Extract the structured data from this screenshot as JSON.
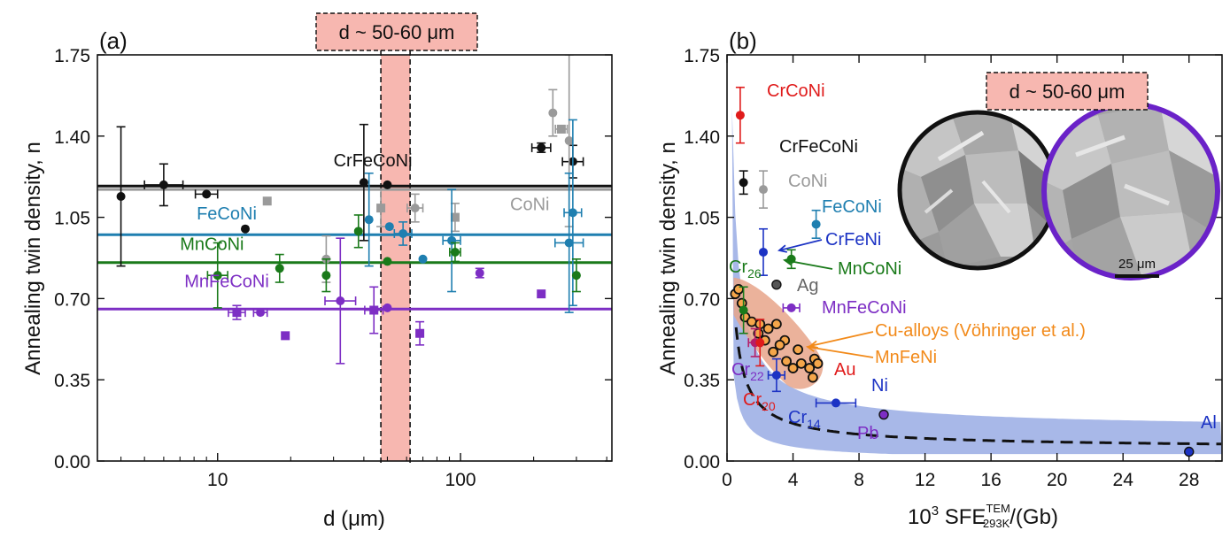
{
  "chart_data": [
    {
      "panel_label": "(a)",
      "type": "scatter",
      "x_scale": "log",
      "xlim": [
        3.2,
        420
      ],
      "ylim": [
        0,
        1.75
      ],
      "xlabel": "d (μm)",
      "ylabel": "Annealing twin density, n",
      "xticks": [
        {
          "value": 10,
          "label": "10"
        },
        {
          "value": 100,
          "label": "100"
        }
      ],
      "yticks": [
        {
          "value": 0,
          "label": "0.00"
        },
        {
          "value": 0.35,
          "label": "0.35"
        },
        {
          "value": 0.7,
          "label": "0.70"
        },
        {
          "value": 1.05,
          "label": "1.05"
        },
        {
          "value": 1.4,
          "label": "1.40"
        },
        {
          "value": 1.75,
          "label": "1.75"
        }
      ],
      "band": {
        "x_range": [
          47,
          62
        ],
        "color": "#f7b7b0",
        "label": "d ~ 50-60 μm"
      },
      "series": [
        {
          "name": "CrFeCoNi",
          "color": "#111111",
          "fit_y": 1.185,
          "label_x": 30,
          "label_y": 1.27,
          "points": [
            {
              "x": 4,
              "y": 1.14,
              "yerr": 0.3
            },
            {
              "x": 6,
              "y": 1.19,
              "yerr": 0.09,
              "xerr": 1.2
            },
            {
              "x": 9,
              "y": 1.15,
              "xerr": 1
            },
            {
              "x": 13,
              "y": 1.0
            },
            {
              "x": 40,
              "y": 1.2,
              "yerr": 0.25
            },
            {
              "x": 50,
              "y": 1.19
            },
            {
              "x": 215,
              "y": 1.35,
              "yerr": 0.02,
              "xerr": 20
            },
            {
              "x": 290,
              "y": 1.29,
              "yerr": 0.07,
              "xerr": 30
            }
          ]
        },
        {
          "name": "CoNi",
          "color": "#9a9a9a",
          "fit_y": 1.17,
          "label_x": 160,
          "label_y": 1.08,
          "points": [
            {
              "x": 16,
              "y": 1.12
            },
            {
              "x": 28,
              "y": 0.87,
              "yerr": 0.1
            },
            {
              "x": 47,
              "y": 1.09,
              "yerr": 0.08
            },
            {
              "x": 65,
              "y": 1.09,
              "yerr": 0.06,
              "xerr": 5
            },
            {
              "x": 95,
              "y": 1.05,
              "yerr": 0.06
            },
            {
              "x": 240,
              "y": 1.5,
              "yerr": 0.1
            },
            {
              "x": 260,
              "y": 1.43,
              "xerr": 15
            },
            {
              "x": 280,
              "y": 1.38,
              "yerr": 0.37
            }
          ]
        },
        {
          "name": "FeCoNi",
          "color": "#1f7fb0",
          "fit_y": 0.975,
          "label_x": 8.2,
          "label_y": 1.04,
          "points": [
            {
              "x": 42,
              "y": 1.04,
              "yerr": 0.2
            },
            {
              "x": 51,
              "y": 1.01
            },
            {
              "x": 58,
              "y": 0.98,
              "yerr": 0.05,
              "xerr": 5
            },
            {
              "x": 70,
              "y": 0.87
            },
            {
              "x": 92,
              "y": 0.95,
              "yerr": 0.22,
              "xerr": 8
            },
            {
              "x": 280,
              "y": 0.94,
              "yerr": 0.3,
              "xerr": 40
            },
            {
              "x": 290,
              "y": 1.07,
              "yerr": 0.4,
              "xerr": 25
            }
          ]
        },
        {
          "name": "MnCoNi",
          "color": "#1a7a1a",
          "fit_y": 0.855,
          "label_x": 7,
          "label_y": 0.91,
          "points": [
            {
              "x": 10,
              "y": 0.8,
              "yerr": 0.14,
              "xerr": 1
            },
            {
              "x": 18,
              "y": 0.83,
              "yerr": 0.06
            },
            {
              "x": 28,
              "y": 0.8,
              "yerr": 0.07
            },
            {
              "x": 38,
              "y": 0.99,
              "yerr": 0.07
            },
            {
              "x": 50,
              "y": 0.86
            },
            {
              "x": 95,
              "y": 0.9,
              "yerr": 0.04,
              "xerr": 5
            },
            {
              "x": 300,
              "y": 0.8,
              "yerr": 0.07
            }
          ]
        },
        {
          "name": "MnFeCoNi",
          "color": "#7d2ec4",
          "fit_y": 0.655,
          "label_x": 7.3,
          "label_y": 0.75,
          "points": [
            {
              "x": 12,
              "y": 0.64,
              "yerr": 0.03,
              "xerr": 1
            },
            {
              "x": 15,
              "y": 0.64,
              "xerr": 1
            },
            {
              "x": 19,
              "y": 0.54
            },
            {
              "x": 32,
              "y": 0.69,
              "yerr": 0.27,
              "xerr": 5
            },
            {
              "x": 44,
              "y": 0.65,
              "yerr": 0.1,
              "xerr": 4
            },
            {
              "x": 50,
              "y": 0.66
            },
            {
              "x": 68,
              "y": 0.55,
              "yerr": 0.05
            },
            {
              "x": 120,
              "y": 0.81,
              "yerr": 0.02
            },
            {
              "x": 215,
              "y": 0.72
            }
          ]
        }
      ]
    },
    {
      "panel_label": "(b)",
      "type": "scatter",
      "xlim": [
        0,
        30
      ],
      "ylim": [
        0,
        1.75
      ],
      "xlabel": "10",
      "xlabel_sup": "3",
      "xlabel_mid": " SFE",
      "xlabel_upper": "TEM",
      "xlabel_lower": "293K",
      "xlabel_tail": "/(Gb)",
      "ylabel": "Annealing twin density, n",
      "xticks": [
        {
          "value": 0,
          "label": "0"
        },
        {
          "value": 4,
          "label": "4"
        },
        {
          "value": 8,
          "label": "8"
        },
        {
          "value": 12,
          "label": "12"
        },
        {
          "value": 16,
          "label": "16"
        },
        {
          "value": 20,
          "label": "20"
        },
        {
          "value": 24,
          "label": "24"
        },
        {
          "value": 28,
          "label": "28"
        }
      ],
      "yticks": [
        {
          "value": 0,
          "label": "0.00"
        },
        {
          "value": 0.35,
          "label": "0.35"
        },
        {
          "value": 0.7,
          "label": "0.70"
        },
        {
          "value": 1.05,
          "label": "1.05"
        },
        {
          "value": 1.4,
          "label": "1.40"
        },
        {
          "value": 1.75,
          "label": "1.75"
        }
      ],
      "inset_label": "d ~ 50-60 μm",
      "scale_bar_label": "25 μm",
      "points": [
        {
          "name": "CrCoNi",
          "x": 0.8,
          "y": 1.49,
          "color": "#e01b1b",
          "yerr": 0.12
        },
        {
          "name": "CrFeCoNi",
          "x": 1.0,
          "y": 1.2,
          "color": "#111111",
          "yerr": 0.05
        },
        {
          "name": "CoNi",
          "x": 2.2,
          "y": 1.17,
          "color": "#9a9a9a",
          "yerr": 0.08
        },
        {
          "name": "FeCoNi",
          "x": 5.4,
          "y": 1.02,
          "color": "#1f7fb0",
          "yerr": 0.06
        },
        {
          "name": "CrFeNi",
          "x": 2.2,
          "y": 0.9,
          "color": "#1c33c4",
          "yerr": 0.1
        },
        {
          "name": "Cr26",
          "x": 1.0,
          "y": 0.65,
          "color": "#1a7a1a",
          "yerr": 0.1
        },
        {
          "name": "MnCoNi",
          "x": 3.9,
          "y": 0.87,
          "color": "#1a7a1a",
          "yerr": 0.04
        },
        {
          "name": "Ag",
          "x": 3.0,
          "y": 0.76,
          "color": "#555555"
        },
        {
          "name": "MnFeCoNi",
          "x": 3.9,
          "y": 0.66,
          "color": "#7d2ec4",
          "xerr": 0.5
        },
        {
          "name": "Cr22",
          "x": 1.7,
          "y": 0.51,
          "color": "#b51f68",
          "yerr": 0.06,
          "xerr": 0.4
        },
        {
          "name": "Cr20",
          "x": 2.0,
          "y": 0.51,
          "color": "#e01b1b",
          "yerr": 0.1
        },
        {
          "name": "Cr14",
          "x": 3.0,
          "y": 0.37,
          "color": "#1c33c4",
          "yerr": 0.07,
          "xerr": 0.5
        },
        {
          "name": "Ni",
          "x": 6.6,
          "y": 0.25,
          "color": "#1c33c4",
          "xerr": 1.2
        },
        {
          "name": "Pb",
          "x": 9.5,
          "y": 0.2,
          "color": "#7d2ec4"
        },
        {
          "name": "Al",
          "x": 28,
          "y": 0.04,
          "color": "#1c33c4"
        }
      ],
      "cu_alloys": [
        [
          0.5,
          0.72
        ],
        [
          0.7,
          0.74
        ],
        [
          0.9,
          0.68
        ],
        [
          1.1,
          0.62
        ],
        [
          1.5,
          0.6
        ],
        [
          2.0,
          0.59
        ],
        [
          2.5,
          0.57
        ],
        [
          3.0,
          0.59
        ],
        [
          3.5,
          0.52
        ],
        [
          1.9,
          0.55
        ],
        [
          2.3,
          0.52
        ],
        [
          3.2,
          0.5
        ],
        [
          2.8,
          0.47
        ],
        [
          4.3,
          0.48
        ],
        [
          4.5,
          0.42
        ],
        [
          5.0,
          0.4
        ],
        [
          5.3,
          0.44
        ],
        [
          5.2,
          0.36
        ],
        [
          3.6,
          0.43
        ],
        [
          4.0,
          0.4
        ],
        [
          5.5,
          0.42
        ]
      ],
      "fit_curve_color": "#111111",
      "band_color": "#9fb0e6",
      "cu_band_color": "#e7a58a",
      "labels": [
        {
          "key": "crconi",
          "text": "CrCoNi",
          "color": "#e01b1b"
        },
        {
          "key": "crfeconi",
          "text": "CrFeCoNi",
          "color": "#111111"
        },
        {
          "key": "coni",
          "text": "CoNi",
          "color": "#9a9a9a"
        },
        {
          "key": "feconi",
          "text": "FeCoNi",
          "color": "#1f7fb0"
        },
        {
          "key": "crfeni",
          "text": "CrFeNi",
          "color": "#1c33c4"
        },
        {
          "key": "mnconi",
          "text": "MnCoNi",
          "color": "#1a7a1a"
        },
        {
          "key": "ag",
          "text": "Ag",
          "color": "#666666"
        },
        {
          "key": "mnfeconi",
          "text": "MnFeCoNi",
          "color": "#7d2ec4"
        },
        {
          "key": "cu",
          "text": "Cu-alloys (Vöhringer et al.)",
          "color": "#f28a1a"
        },
        {
          "key": "mnfeni",
          "text": "MnFeNi",
          "color": "#f28a1a"
        },
        {
          "key": "au",
          "text": "Au",
          "color": "#e01b1b"
        },
        {
          "key": "ni",
          "text": "Ni",
          "color": "#1c33c4"
        },
        {
          "key": "pb",
          "text": "Pb",
          "color": "#7d2ec4"
        },
        {
          "key": "al",
          "text": "Al",
          "color": "#1c33c4"
        }
      ],
      "sub_labels": [
        {
          "key": "cr26",
          "text": "Cr",
          "sub": "26",
          "color": "#1a7a1a"
        },
        {
          "key": "cr22",
          "text": "Cr",
          "sub": "22",
          "color": "#7d2ec4"
        },
        {
          "key": "cr20",
          "text": "Cr",
          "sub": "20",
          "color": "#e01b1b"
        },
        {
          "key": "cr14",
          "text": "Cr",
          "sub": "14",
          "color": "#1c33c4"
        }
      ]
    }
  ]
}
